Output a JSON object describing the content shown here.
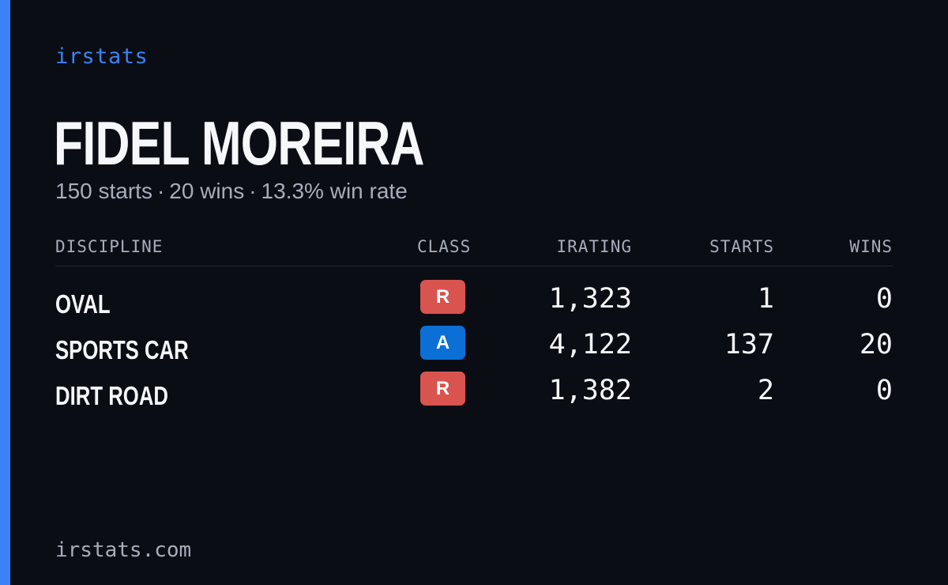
{
  "brand": "irstats",
  "driver": {
    "name": "FIDEL MOREIRA",
    "starts_text": "150 starts",
    "wins_text": "20 wins",
    "win_rate_text": "13.3% win rate",
    "separator": "·"
  },
  "table": {
    "headers": {
      "discipline": "DISCIPLINE",
      "class": "CLASS",
      "irating": "IRATING",
      "starts": "STARTS",
      "wins": "WINS"
    },
    "rows": [
      {
        "discipline": "OVAL",
        "class": "R",
        "class_color": "#d9534f",
        "irating": "1,323",
        "starts": "1",
        "wins": "0"
      },
      {
        "discipline": "SPORTS CAR",
        "class": "A",
        "class_color": "#0b6fd6",
        "irating": "4,122",
        "starts": "137",
        "wins": "20"
      },
      {
        "discipline": "DIRT ROAD",
        "class": "R",
        "class_color": "#d9534f",
        "irating": "1,382",
        "starts": "2",
        "wins": "0"
      }
    ]
  },
  "footer": "irstats.com",
  "colors": {
    "background": "#0b0d14",
    "accent": "#3b82f6"
  }
}
